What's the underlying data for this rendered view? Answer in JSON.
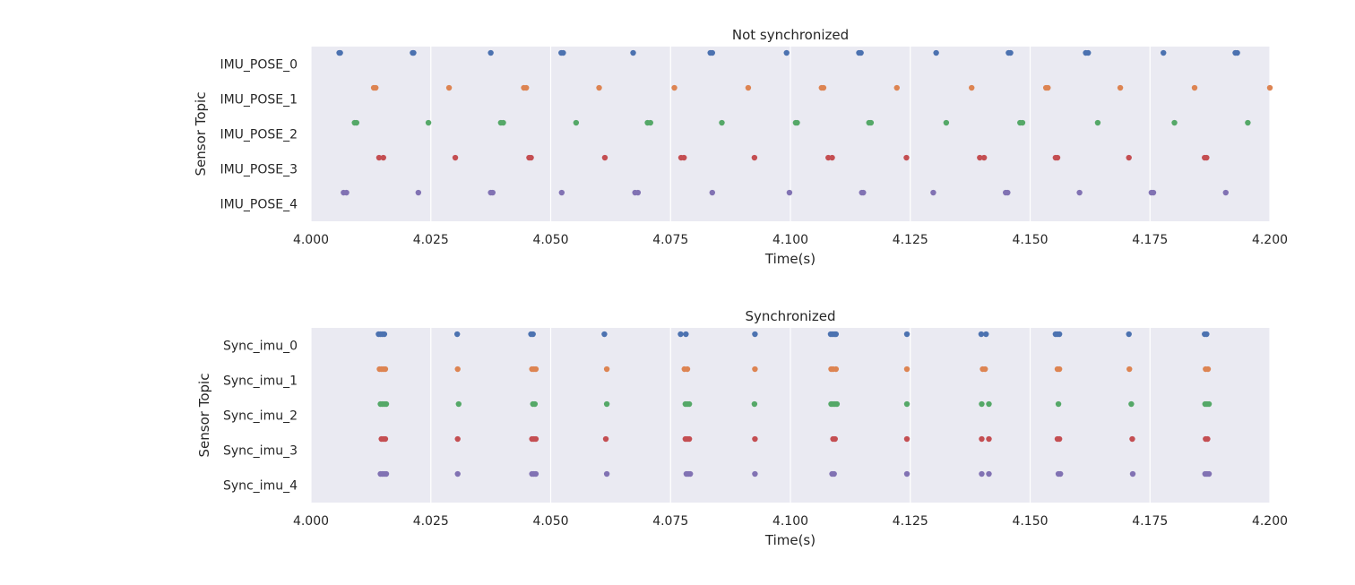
{
  "colors": [
    "#4c72b0",
    "#dd8452",
    "#55a868",
    "#c44e52",
    "#8172b3"
  ],
  "chart_data": [
    {
      "type": "scatter",
      "title": "Not synchronized",
      "xlabel": "Time(s)",
      "ylabel": "Sensor Topic",
      "xlim": [
        4.0,
        4.2
      ],
      "xticks": [
        "4.000",
        "4.025",
        "4.050",
        "4.075",
        "4.100",
        "4.125",
        "4.150",
        "4.175",
        "4.200"
      ],
      "xtick_values": [
        4.0,
        4.025,
        4.05,
        4.075,
        4.1,
        4.125,
        4.15,
        4.175,
        4.2
      ],
      "grid": true,
      "categories": [
        "IMU_POSE_0",
        "IMU_POSE_1",
        "IMU_POSE_2",
        "IMU_POSE_3",
        "IMU_POSE_4"
      ],
      "series": [
        {
          "x": [
            4.0059,
            4.0061,
            4.0212,
            4.0214,
            4.0375,
            4.0522,
            4.0526,
            4.0672,
            4.0833,
            4.0837,
            4.0992,
            4.1143,
            4.1147,
            4.1304,
            4.1455,
            4.1459,
            4.1616,
            4.1621,
            4.1778,
            4.1928,
            4.1932
          ]
        },
        {
          "x": [
            4.0131,
            4.0135,
            4.0288,
            4.0444,
            4.0449,
            4.0601,
            4.0758,
            4.0912,
            4.1065,
            4.1069,
            4.1222,
            4.1378,
            4.1533,
            4.1537,
            4.1688,
            4.1843,
            4.2
          ]
        },
        {
          "x": [
            4.0091,
            4.0095,
            4.0245,
            4.0396,
            4.0401,
            4.0553,
            4.0702,
            4.0708,
            4.0857,
            4.1011,
            4.1014,
            4.1164,
            4.1168,
            4.1325,
            4.1479,
            4.1484,
            4.1641,
            4.1801,
            4.1954
          ]
        },
        {
          "x": [
            4.0142,
            4.0151,
            4.0301,
            4.0455,
            4.0459,
            4.0613,
            4.0772,
            4.0778,
            4.0925,
            4.1079,
            4.1087,
            4.1242,
            4.1395,
            4.1404,
            4.1553,
            4.1557,
            4.1706,
            4.1864,
            4.1868
          ]
        },
        {
          "x": [
            4.0068,
            4.0074,
            4.0224,
            4.0375,
            4.0379,
            4.0523,
            4.0676,
            4.0682,
            4.0837,
            4.0998,
            4.1149,
            4.1152,
            4.1298,
            4.1449,
            4.1453,
            4.1603,
            4.1753,
            4.1757,
            4.1908
          ]
        }
      ]
    },
    {
      "type": "scatter",
      "title": "Synchronized",
      "xlabel": "Time(s)",
      "ylabel": "Sensor Topic",
      "xlim": [
        4.0,
        4.2
      ],
      "xticks": [
        "4.000",
        "4.025",
        "4.050",
        "4.075",
        "4.100",
        "4.125",
        "4.150",
        "4.175",
        "4.200"
      ],
      "xtick_values": [
        4.0,
        4.025,
        4.05,
        4.075,
        4.1,
        4.125,
        4.15,
        4.175,
        4.2
      ],
      "grid": true,
      "categories": [
        "Sync_imu_0",
        "Sync_imu_1",
        "Sync_imu_2",
        "Sync_imu_3",
        "Sync_imu_4"
      ],
      "series": [
        {
          "x": [
            4.0141,
            4.0145,
            4.0149,
            4.0153,
            4.0305,
            4.0459,
            4.0463,
            4.0612,
            4.0771,
            4.0782,
            4.0926,
            4.1084,
            4.1088,
            4.1092,
            4.1095,
            4.1243,
            4.1398,
            4.1408,
            4.1553,
            4.1557,
            4.1561,
            4.1706,
            4.1864,
            4.1868
          ]
        },
        {
          "x": [
            4.0143,
            4.0147,
            4.0151,
            4.0155,
            4.0306,
            4.0461,
            4.0465,
            4.0469,
            4.0617,
            4.0779,
            4.0785,
            4.0926,
            4.1085,
            4.1089,
            4.1095,
            4.1243,
            4.1401,
            4.1406,
            4.1557,
            4.1561,
            4.1707,
            4.1866,
            4.1871
          ]
        },
        {
          "x": [
            4.0145,
            4.0149,
            4.0153,
            4.0157,
            4.0308,
            4.0463,
            4.0467,
            4.0617,
            4.0781,
            4.0785,
            4.0789,
            4.0925,
            4.1085,
            4.1089,
            4.1093,
            4.1097,
            4.1243,
            4.1399,
            4.1414,
            4.1559,
            4.1711,
            4.1865,
            4.1869,
            4.1873
          ]
        },
        {
          "x": [
            4.0147,
            4.0151,
            4.0155,
            4.0306,
            4.0461,
            4.0465,
            4.0469,
            4.0615,
            4.0781,
            4.0785,
            4.0789,
            4.0926,
            4.1089,
            4.1093,
            4.1243,
            4.1399,
            4.1414,
            4.1557,
            4.1561,
            4.1713,
            4.1866,
            4.187
          ]
        },
        {
          "x": [
            4.0145,
            4.0149,
            4.0153,
            4.0157,
            4.0306,
            4.0461,
            4.0465,
            4.0469,
            4.0617,
            4.0783,
            4.0787,
            4.0791,
            4.0926,
            4.1087,
            4.1091,
            4.1243,
            4.1399,
            4.1414,
            4.1559,
            4.1563,
            4.1714,
            4.1865,
            4.1869,
            4.1873
          ]
        }
      ]
    }
  ]
}
